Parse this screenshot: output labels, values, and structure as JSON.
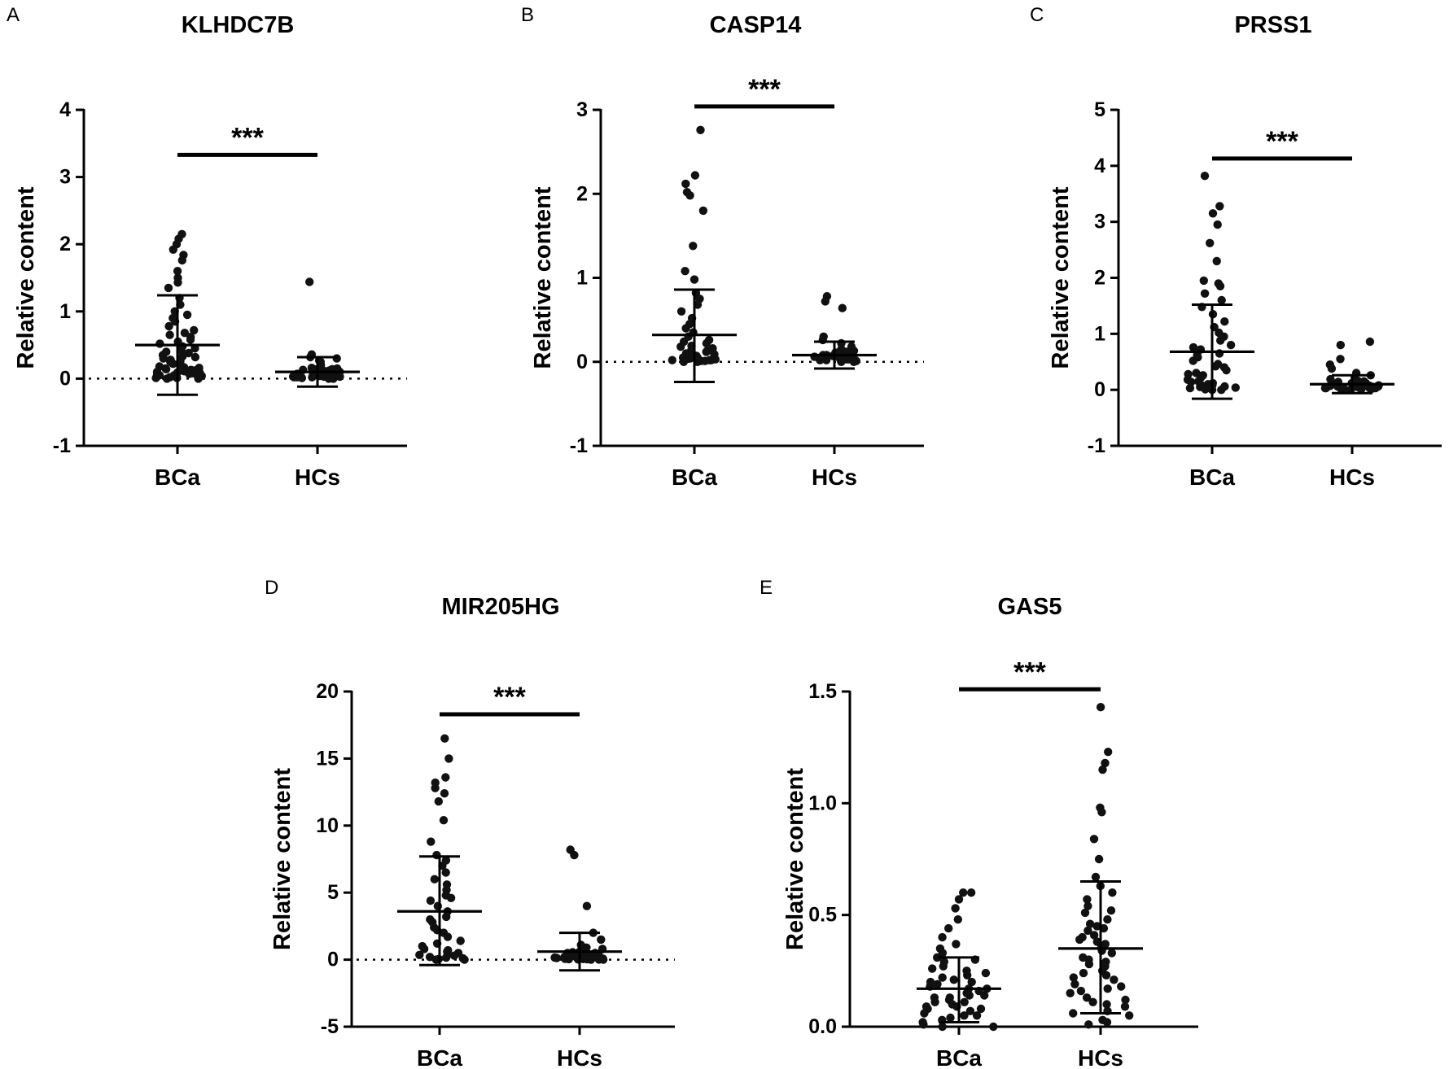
{
  "chart_data": [
    {
      "panel": "A",
      "type": "scatter",
      "title": "KLHDC7B",
      "xlabel": "",
      "ylabel": "Relative content",
      "categories": [
        "BCa",
        "HCs"
      ],
      "ylim": [
        -1,
        4
      ],
      "yticks": [
        -1,
        0,
        1,
        2,
        3,
        4
      ],
      "zero_line": true,
      "significance": "***",
      "sig_y": 3.33,
      "groups": [
        {
          "name": "BCa",
          "mean": 0.5,
          "sd_low": -0.24,
          "sd_high": 1.24,
          "values": [
            2.15,
            2.08,
            2.0,
            1.92,
            1.84,
            1.76,
            1.6,
            1.5,
            1.43,
            1.35,
            1.2,
            1.1,
            1.0,
            0.95,
            0.9,
            0.85,
            0.78,
            0.72,
            0.68,
            0.62,
            0.58,
            0.52,
            0.48,
            0.45,
            0.4,
            0.38,
            0.35,
            0.32,
            0.3,
            0.28,
            0.26,
            0.24,
            0.22,
            0.2,
            0.18,
            0.17,
            0.16,
            0.15,
            0.14,
            0.13,
            0.12,
            0.11,
            0.1,
            0.09,
            0.08,
            0.07,
            0.06,
            0.05,
            0.04,
            0.03,
            0.02,
            0.02,
            0.01,
            0.01,
            0.0,
            0.0,
            0.25,
            0.33,
            0.42,
            0.55,
            0.65,
            0.14,
            0.09,
            0.05
          ]
        },
        {
          "name": "HCs",
          "mean": 0.1,
          "sd_low": -0.12,
          "sd_high": 0.32,
          "values": [
            1.44,
            0.36,
            0.32,
            0.3,
            0.27,
            0.25,
            0.22,
            0.2,
            0.18,
            0.16,
            0.15,
            0.14,
            0.13,
            0.12,
            0.11,
            0.1,
            0.1,
            0.09,
            0.09,
            0.08,
            0.08,
            0.07,
            0.07,
            0.06,
            0.06,
            0.05,
            0.05,
            0.04,
            0.04,
            0.03,
            0.03,
            0.02,
            0.02,
            0.01,
            0.01,
            0.0,
            0.0,
            0.12,
            0.06,
            0.08,
            0.04,
            0.02,
            0.1,
            0.14,
            0.03
          ]
        }
      ]
    },
    {
      "panel": "B",
      "type": "scatter",
      "title": "CASP14",
      "xlabel": "",
      "ylabel": "Relative content",
      "categories": [
        "BCa",
        "HCs"
      ],
      "ylim": [
        -1,
        3
      ],
      "yticks": [
        -1,
        0,
        1,
        2,
        3
      ],
      "zero_line": true,
      "significance": "***",
      "sig_y": 3.04,
      "groups": [
        {
          "name": "BCa",
          "mean": 0.32,
          "sd_low": -0.24,
          "sd_high": 0.86,
          "values": [
            2.76,
            2.22,
            2.12,
            2.02,
            1.98,
            1.8,
            1.38,
            1.08,
            0.98,
            0.82,
            0.75,
            0.68,
            0.6,
            0.52,
            0.45,
            0.4,
            0.35,
            0.3,
            0.26,
            0.22,
            0.19,
            0.16,
            0.14,
            0.12,
            0.1,
            0.09,
            0.08,
            0.07,
            0.06,
            0.05,
            0.04,
            0.03,
            0.02,
            0.02,
            0.01,
            0.01,
            0.0,
            0.0,
            0.24,
            0.13,
            0.07,
            0.04,
            0.1,
            0.18,
            0.02
          ]
        },
        {
          "name": "HCs",
          "mean": 0.08,
          "sd_low": -0.08,
          "sd_high": 0.24,
          "values": [
            0.78,
            0.72,
            0.64,
            0.3,
            0.26,
            0.22,
            0.18,
            0.15,
            0.13,
            0.12,
            0.11,
            0.1,
            0.09,
            0.08,
            0.08,
            0.07,
            0.07,
            0.06,
            0.06,
            0.05,
            0.05,
            0.04,
            0.04,
            0.03,
            0.03,
            0.02,
            0.02,
            0.01,
            0.01,
            0.0,
            0.0,
            0.1,
            0.06,
            0.04,
            0.08,
            0.12
          ]
        }
      ]
    },
    {
      "panel": "C",
      "type": "scatter",
      "title": "PRSS1",
      "xlabel": "",
      "ylabel": "Relative content",
      "categories": [
        "BCa",
        "HCs"
      ],
      "ylim": [
        -1,
        5
      ],
      "yticks": [
        -1,
        0,
        1,
        2,
        3,
        4,
        5
      ],
      "zero_line": false,
      "significance": "***",
      "sig_y": 4.13,
      "groups": [
        {
          "name": "BCa",
          "mean": 0.68,
          "sd_low": -0.16,
          "sd_high": 1.52,
          "values": [
            3.82,
            3.28,
            3.15,
            2.95,
            2.62,
            2.3,
            1.95,
            1.9,
            1.85,
            1.72,
            1.6,
            1.48,
            1.35,
            1.22,
            1.12,
            1.02,
            0.95,
            0.88,
            0.8,
            0.72,
            0.65,
            0.58,
            0.52,
            0.46,
            0.4,
            0.35,
            0.3,
            0.26,
            0.22,
            0.18,
            0.15,
            0.12,
            0.1,
            0.08,
            0.06,
            0.05,
            0.04,
            0.03,
            0.02,
            0.01,
            0.0,
            0.0,
            0.14,
            0.09,
            0.62,
            0.76,
            0.28,
            0.42
          ]
        },
        {
          "name": "HCs",
          "mean": 0.1,
          "sd_low": -0.06,
          "sd_high": 0.26,
          "values": [
            0.86,
            0.8,
            0.55,
            0.45,
            0.38,
            0.3,
            0.26,
            0.22,
            0.19,
            0.16,
            0.14,
            0.12,
            0.11,
            0.1,
            0.09,
            0.08,
            0.08,
            0.07,
            0.07,
            0.06,
            0.06,
            0.05,
            0.05,
            0.04,
            0.04,
            0.03,
            0.03,
            0.02,
            0.02,
            0.01,
            0.01,
            0.0,
            0.0,
            0.12,
            0.07,
            0.1,
            0.05,
            0.15,
            0.09,
            0.03
          ]
        }
      ]
    },
    {
      "panel": "D",
      "type": "scatter",
      "title": "MIR205HG",
      "xlabel": "",
      "ylabel": "Relative content",
      "categories": [
        "BCa",
        "HCs"
      ],
      "ylim": [
        -5,
        20
      ],
      "yticks": [
        -5,
        0,
        5,
        10,
        15,
        20
      ],
      "zero_line": true,
      "significance": "***",
      "sig_y": 18.3,
      "groups": [
        {
          "name": "BCa",
          "mean": 3.6,
          "sd_low": -0.4,
          "sd_high": 7.7,
          "values": [
            16.5,
            15.0,
            13.6,
            13.2,
            12.8,
            12.4,
            11.8,
            10.4,
            8.8,
            7.8,
            7.4,
            7.0,
            6.5,
            6.0,
            5.6,
            5.2,
            4.8,
            4.4,
            4.0,
            3.6,
            3.2,
            2.8,
            2.4,
            2.0,
            1.7,
            1.4,
            1.2,
            1.0,
            0.8,
            0.6,
            0.5,
            0.4,
            0.3,
            0.2,
            0.15,
            0.1,
            0.05,
            0.0,
            0.0,
            0.7,
            0.35,
            2.2,
            3.0,
            4.6
          ]
        },
        {
          "name": "HCs",
          "mean": 0.6,
          "sd_low": -0.8,
          "sd_high": 2.0,
          "values": [
            8.2,
            7.8,
            4.0,
            2.0,
            1.5,
            1.1,
            0.9,
            0.8,
            0.7,
            0.6,
            0.55,
            0.5,
            0.45,
            0.4,
            0.35,
            0.3,
            0.28,
            0.25,
            0.22,
            0.2,
            0.18,
            0.15,
            0.12,
            0.1,
            0.08,
            0.06,
            0.05,
            0.04,
            0.03,
            0.02,
            0.01,
            0.0,
            0.0,
            0.3,
            0.5,
            0.2,
            0.4
          ]
        }
      ]
    },
    {
      "panel": "E",
      "type": "scatter",
      "title": "GAS5",
      "xlabel": "",
      "ylabel": "Relative content",
      "categories": [
        "BCa",
        "HCs"
      ],
      "ylim": [
        0.0,
        1.5
      ],
      "yticks": [
        0.0,
        0.5,
        1.0,
        1.5
      ],
      "tick_format": "0.0",
      "zero_line": false,
      "significance": "***",
      "sig_y": 1.51,
      "groups": [
        {
          "name": "BCa",
          "mean": 0.17,
          "sd_low": 0.02,
          "sd_high": 0.31,
          "values": [
            0.6,
            0.6,
            0.57,
            0.53,
            0.48,
            0.44,
            0.4,
            0.37,
            0.35,
            0.33,
            0.31,
            0.29,
            0.27,
            0.25,
            0.24,
            0.22,
            0.21,
            0.2,
            0.19,
            0.18,
            0.17,
            0.16,
            0.15,
            0.14,
            0.13,
            0.12,
            0.11,
            0.1,
            0.09,
            0.08,
            0.07,
            0.06,
            0.05,
            0.04,
            0.03,
            0.02,
            0.01,
            0.0,
            0.0,
            0.26,
            0.23,
            0.17,
            0.13,
            0.08,
            0.05,
            0.3,
            0.14,
            0.11,
            0.2,
            0.09
          ]
        },
        {
          "name": "HCs",
          "mean": 0.35,
          "sd_low": 0.06,
          "sd_high": 0.65,
          "values": [
            1.43,
            1.23,
            1.18,
            1.15,
            0.98,
            0.96,
            0.84,
            0.75,
            0.67,
            0.63,
            0.6,
            0.57,
            0.54,
            0.51,
            0.48,
            0.45,
            0.43,
            0.41,
            0.39,
            0.37,
            0.35,
            0.33,
            0.31,
            0.29,
            0.27,
            0.25,
            0.23,
            0.21,
            0.19,
            0.17,
            0.15,
            0.13,
            0.11,
            0.09,
            0.07,
            0.05,
            0.03,
            0.02,
            0.01,
            0.46,
            0.4,
            0.34,
            0.28,
            0.22,
            0.16,
            0.1,
            0.52,
            0.38,
            0.3,
            0.24,
            0.18,
            0.12,
            0.06,
            0.44,
            0.36
          ]
        }
      ]
    }
  ]
}
